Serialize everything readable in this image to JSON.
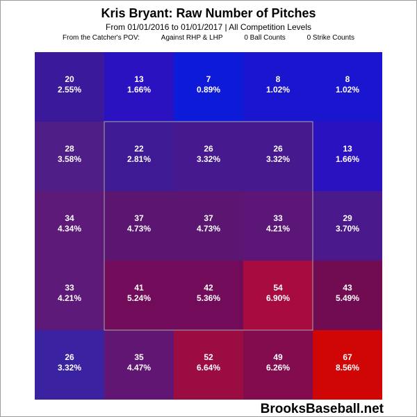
{
  "chart_data": {
    "type": "heatmap",
    "title": "Kris Bryant: Raw Number of Pitches",
    "subtitle": "From 01/01/2016 to 01/01/2017 | All Competition Levels",
    "info": [
      "From the Catcher's POV:",
      "Against RHP & LHP",
      "0 Ball Counts",
      "0 Strike Counts"
    ],
    "rows": 5,
    "cols": 5,
    "cells": [
      [
        {
          "count": "20",
          "pct": "2.55%"
        },
        {
          "count": "13",
          "pct": "1.66%"
        },
        {
          "count": "7",
          "pct": "0.89%"
        },
        {
          "count": "8",
          "pct": "1.02%"
        },
        {
          "count": "8",
          "pct": "1.02%"
        }
      ],
      [
        {
          "count": "28",
          "pct": "3.58%"
        },
        {
          "count": "22",
          "pct": "2.81%"
        },
        {
          "count": "26",
          "pct": "3.32%"
        },
        {
          "count": "26",
          "pct": "3.32%"
        },
        {
          "count": "13",
          "pct": "1.66%"
        }
      ],
      [
        {
          "count": "34",
          "pct": "4.34%"
        },
        {
          "count": "37",
          "pct": "4.73%"
        },
        {
          "count": "37",
          "pct": "4.73%"
        },
        {
          "count": "33",
          "pct": "4.21%"
        },
        {
          "count": "29",
          "pct": "3.70%"
        }
      ],
      [
        {
          "count": "33",
          "pct": "4.21%"
        },
        {
          "count": "41",
          "pct": "5.24%"
        },
        {
          "count": "42",
          "pct": "5.36%"
        },
        {
          "count": "54",
          "pct": "6.90%"
        },
        {
          "count": "43",
          "pct": "5.49%"
        }
      ],
      [
        {
          "count": "26",
          "pct": "3.32%"
        },
        {
          "count": "35",
          "pct": "4.47%"
        },
        {
          "count": "52",
          "pct": "6.64%"
        },
        {
          "count": "49",
          "pct": "6.26%"
        },
        {
          "count": "67",
          "pct": "8.56%"
        }
      ]
    ],
    "colors": [
      [
        "#3a1a9a",
        "#2a12c0",
        "#0d1bd8",
        "#1a16cf",
        "#1a16cf"
      ],
      [
        "#4f1e86",
        "#3e1a94",
        "#461a8e",
        "#461a8e",
        "#2a12c0"
      ],
      [
        "#5d1a78",
        "#5a1670",
        "#5a1670",
        "#5b1678",
        "#4a1a8c"
      ],
      [
        "#5d1a78",
        "#720c5a",
        "#720c5a",
        "#a80b40",
        "#720c52"
      ],
      [
        "#3a22a0",
        "#621674",
        "#9a0c42",
        "#830c4e",
        "#d00606"
      ]
    ],
    "strike_zone": {
      "row_start": 1,
      "row_end": 3,
      "col_start": 1,
      "col_end": 3
    }
  },
  "watermark": "BrooksBaseball.net"
}
